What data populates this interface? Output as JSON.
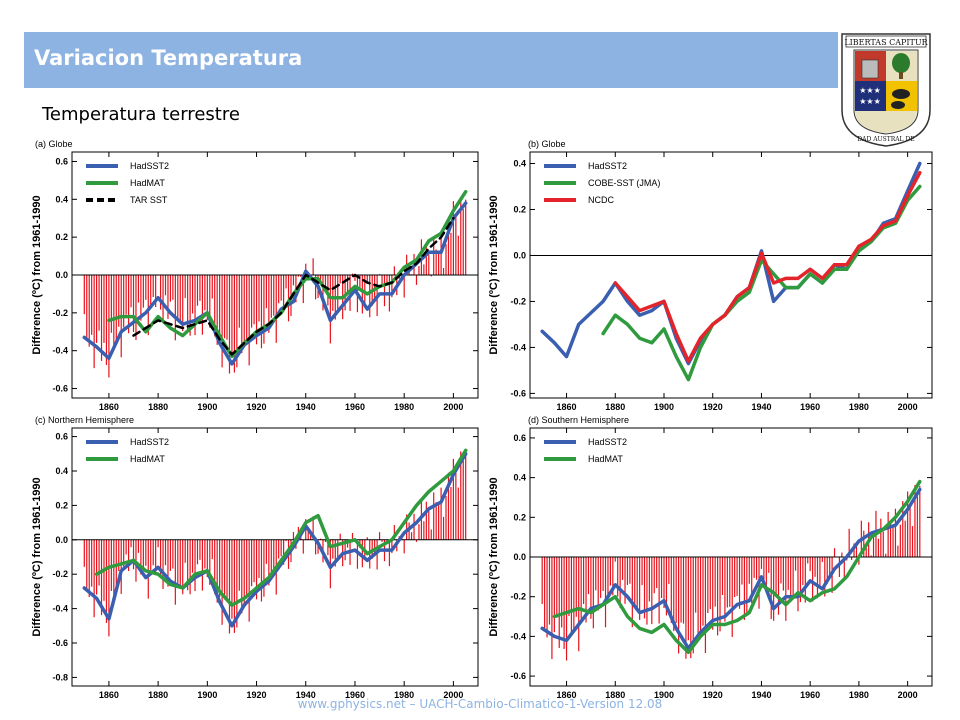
{
  "header": {
    "title": "Variacion Temperatura"
  },
  "subtitle": "Temperatura terrestre",
  "footer": "www.gphysics.net – UACH-Cambio-Climatico-1-Version 12.08",
  "logo": {
    "motto": "LIBERTAS CAPITUR",
    "ring_text": "UNIVERSIDAD AUSTRAL DE CHILE",
    "icon": "university-crest-icon"
  },
  "colors": {
    "accent": "#8db3e2",
    "bars": "#e8121c",
    "hadsst2": "#3a5fb0",
    "hadmat": "#2f9a3e",
    "cobe": "#2f9a3e",
    "ncdc": "#e3242b",
    "tar": "#000000"
  },
  "chart_data": [
    {
      "type": "line",
      "title": "(a) Globe",
      "ylabel": "Difference (ºC) from 1961-1990",
      "xlim": [
        1845,
        2010
      ],
      "ylim": [
        -0.65,
        0.65
      ],
      "xticks": [
        "1860",
        "1880",
        "1900",
        "1920",
        "1940",
        "1960",
        "1980",
        "2000"
      ],
      "yticks": [
        "0.6",
        "0.4",
        "0.2",
        "0.0",
        "-0.2",
        "-0.4",
        "-0.6"
      ],
      "bars_series": "HadSST2 annual anomalies",
      "series": [
        {
          "name": "HadSST2",
          "x": [
            1850,
            1855,
            1860,
            1865,
            1870,
            1875,
            1880,
            1885,
            1890,
            1895,
            1900,
            1905,
            1910,
            1915,
            1920,
            1925,
            1930,
            1935,
            1940,
            1945,
            1950,
            1955,
            1960,
            1965,
            1970,
            1975,
            1980,
            1985,
            1990,
            1995,
            2000,
            2005
          ],
          "values": [
            -0.33,
            -0.38,
            -0.44,
            -0.3,
            -0.25,
            -0.2,
            -0.12,
            -0.2,
            -0.26,
            -0.24,
            -0.2,
            -0.36,
            -0.47,
            -0.37,
            -0.32,
            -0.28,
            -0.18,
            -0.14,
            0.02,
            -0.06,
            -0.24,
            -0.16,
            -0.08,
            -0.18,
            -0.1,
            -0.1,
            0.0,
            0.06,
            0.12,
            0.12,
            0.3,
            0.38
          ]
        },
        {
          "name": "HadMAT",
          "x": [
            1860,
            1865,
            1870,
            1875,
            1880,
            1885,
            1890,
            1895,
            1900,
            1905,
            1910,
            1915,
            1920,
            1925,
            1930,
            1935,
            1940,
            1945,
            1950,
            1955,
            1960,
            1965,
            1970,
            1975,
            1980,
            1985,
            1990,
            1995,
            2000,
            2005
          ],
          "values": [
            -0.24,
            -0.22,
            -0.22,
            -0.3,
            -0.22,
            -0.28,
            -0.32,
            -0.26,
            -0.2,
            -0.32,
            -0.43,
            -0.36,
            -0.3,
            -0.26,
            -0.2,
            -0.1,
            -0.02,
            -0.02,
            -0.12,
            -0.12,
            -0.06,
            -0.1,
            -0.06,
            -0.04,
            0.04,
            0.08,
            0.18,
            0.22,
            0.34,
            0.44
          ]
        },
        {
          "name": "TAR SST",
          "x": [
            1870,
            1875,
            1880,
            1885,
            1890,
            1895,
            1900,
            1905,
            1910,
            1915,
            1920,
            1925,
            1930,
            1935,
            1940,
            1945,
            1950,
            1955,
            1960,
            1965,
            1970,
            1975,
            1980,
            1985,
            1990,
            1995,
            2000
          ],
          "values": [
            -0.32,
            -0.28,
            -0.24,
            -0.26,
            -0.28,
            -0.26,
            -0.24,
            -0.34,
            -0.42,
            -0.36,
            -0.3,
            -0.26,
            -0.2,
            -0.1,
            0.0,
            -0.04,
            -0.08,
            -0.04,
            0.0,
            -0.04,
            -0.06,
            -0.04,
            0.02,
            0.06,
            0.14,
            0.2,
            0.3
          ]
        }
      ]
    },
    {
      "type": "line",
      "title": "(b) Globe",
      "ylabel": "Difference (ºC) from 1961-1990",
      "xlim": [
        1845,
        2010
      ],
      "ylim": [
        -0.62,
        0.45
      ],
      "xticks": [
        "1860",
        "1880",
        "1900",
        "1920",
        "1940",
        "1960",
        "1980",
        "2000"
      ],
      "yticks": [
        "0.4",
        "0.2",
        "0.0",
        "-0.2",
        "-0.4",
        "-0.6"
      ],
      "series": [
        {
          "name": "HadSST2",
          "x": [
            1850,
            1855,
            1860,
            1865,
            1870,
            1875,
            1880,
            1885,
            1890,
            1895,
            1900,
            1905,
            1910,
            1915,
            1920,
            1925,
            1930,
            1935,
            1940,
            1945,
            1950,
            1955,
            1960,
            1965,
            1970,
            1975,
            1980,
            1985,
            1990,
            1995,
            2000,
            2005
          ],
          "values": [
            -0.33,
            -0.38,
            -0.44,
            -0.3,
            -0.25,
            -0.2,
            -0.12,
            -0.2,
            -0.26,
            -0.24,
            -0.2,
            -0.36,
            -0.47,
            -0.37,
            -0.3,
            -0.26,
            -0.18,
            -0.14,
            0.02,
            -0.2,
            -0.14,
            -0.14,
            -0.08,
            -0.12,
            -0.04,
            -0.06,
            0.04,
            0.06,
            0.14,
            0.16,
            0.28,
            0.4
          ]
        },
        {
          "name": "COBE-SST (JMA)",
          "x": [
            1875,
            1880,
            1885,
            1890,
            1895,
            1900,
            1905,
            1910,
            1915,
            1920,
            1925,
            1930,
            1935,
            1940,
            1945,
            1950,
            1955,
            1960,
            1965,
            1970,
            1975,
            1980,
            1985,
            1990,
            1995,
            2000,
            2005
          ],
          "values": [
            -0.34,
            -0.26,
            -0.3,
            -0.36,
            -0.38,
            -0.32,
            -0.44,
            -0.54,
            -0.4,
            -0.3,
            -0.26,
            -0.2,
            -0.16,
            -0.02,
            -0.08,
            -0.14,
            -0.14,
            -0.08,
            -0.12,
            -0.06,
            -0.06,
            0.02,
            0.06,
            0.12,
            0.14,
            0.24,
            0.3
          ]
        },
        {
          "name": "NCDC",
          "x": [
            1880,
            1885,
            1890,
            1895,
            1900,
            1905,
            1910,
            1915,
            1920,
            1925,
            1930,
            1935,
            1940,
            1945,
            1950,
            1955,
            1960,
            1965,
            1970,
            1975,
            1980,
            1985,
            1990,
            1995,
            2000,
            2005
          ],
          "values": [
            -0.12,
            -0.18,
            -0.24,
            -0.22,
            -0.2,
            -0.34,
            -0.46,
            -0.36,
            -0.3,
            -0.26,
            -0.18,
            -0.14,
            0.01,
            -0.12,
            -0.1,
            -0.1,
            -0.06,
            -0.1,
            -0.04,
            -0.04,
            0.04,
            0.07,
            0.13,
            0.15,
            0.26,
            0.36
          ]
        }
      ]
    },
    {
      "type": "line",
      "title": "(c) Northern Hemisphere",
      "ylabel": "Difference (ºC) from 1961-1990",
      "xlim": [
        1845,
        2010
      ],
      "ylim": [
        -0.85,
        0.65
      ],
      "xticks": [
        "1860",
        "1880",
        "1900",
        "1920",
        "1940",
        "1960",
        "1980",
        "2000"
      ],
      "yticks": [
        "0.6",
        "0.4",
        "0.2",
        "0.0",
        "-0.2",
        "-0.4",
        "-0.6",
        "-0.8"
      ],
      "series": [
        {
          "name": "HadSST2",
          "x": [
            1850,
            1855,
            1860,
            1865,
            1870,
            1875,
            1880,
            1885,
            1890,
            1895,
            1900,
            1905,
            1910,
            1915,
            1920,
            1925,
            1930,
            1935,
            1940,
            1945,
            1950,
            1955,
            1960,
            1965,
            1970,
            1975,
            1980,
            1985,
            1990,
            1995,
            2000,
            2005
          ],
          "values": [
            -0.28,
            -0.34,
            -0.46,
            -0.18,
            -0.12,
            -0.22,
            -0.16,
            -0.24,
            -0.28,
            -0.22,
            -0.18,
            -0.36,
            -0.5,
            -0.38,
            -0.3,
            -0.24,
            -0.14,
            -0.04,
            0.08,
            -0.02,
            -0.16,
            -0.08,
            -0.06,
            -0.12,
            -0.06,
            -0.06,
            0.04,
            0.1,
            0.18,
            0.22,
            0.38,
            0.5
          ]
        },
        {
          "name": "HadMAT",
          "x": [
            1855,
            1860,
            1865,
            1870,
            1875,
            1880,
            1885,
            1890,
            1895,
            1900,
            1905,
            1910,
            1915,
            1920,
            1925,
            1930,
            1935,
            1940,
            1945,
            1950,
            1955,
            1960,
            1965,
            1970,
            1975,
            1980,
            1985,
            1990,
            1995,
            2000,
            2005
          ],
          "values": [
            -0.2,
            -0.16,
            -0.14,
            -0.12,
            -0.18,
            -0.2,
            -0.26,
            -0.28,
            -0.2,
            -0.18,
            -0.3,
            -0.38,
            -0.34,
            -0.28,
            -0.22,
            -0.12,
            -0.02,
            0.1,
            0.14,
            -0.04,
            -0.02,
            0.0,
            -0.08,
            -0.04,
            0.0,
            0.1,
            0.2,
            0.28,
            0.34,
            0.4,
            0.52
          ]
        }
      ]
    },
    {
      "type": "line",
      "title": "(d) Southern Hemisphere",
      "ylabel": "Difference (ºC) from 1961-1990",
      "xlim": [
        1845,
        2010
      ],
      "ylim": [
        -0.65,
        0.65
      ],
      "xticks": [
        "1860",
        "1880",
        "1900",
        "1920",
        "1940",
        "1960",
        "1980",
        "2000"
      ],
      "yticks": [
        "0.6",
        "0.4",
        "0.2",
        "0.0",
        "-0.2",
        "-0.4",
        "-0.6"
      ],
      "series": [
        {
          "name": "HadSST2",
          "x": [
            1850,
            1855,
            1860,
            1865,
            1870,
            1875,
            1880,
            1885,
            1890,
            1895,
            1900,
            1905,
            1910,
            1915,
            1920,
            1925,
            1930,
            1935,
            1940,
            1945,
            1950,
            1955,
            1960,
            1965,
            1970,
            1975,
            1980,
            1985,
            1990,
            1995,
            2000,
            2005
          ],
          "values": [
            -0.36,
            -0.4,
            -0.42,
            -0.34,
            -0.26,
            -0.24,
            -0.14,
            -0.2,
            -0.28,
            -0.26,
            -0.22,
            -0.36,
            -0.46,
            -0.38,
            -0.32,
            -0.3,
            -0.24,
            -0.22,
            -0.1,
            -0.26,
            -0.2,
            -0.2,
            -0.12,
            -0.16,
            -0.06,
            0.0,
            0.08,
            0.12,
            0.14,
            0.16,
            0.24,
            0.34
          ]
        },
        {
          "name": "HadMAT",
          "x": [
            1855,
            1860,
            1865,
            1870,
            1875,
            1880,
            1885,
            1890,
            1895,
            1900,
            1905,
            1910,
            1915,
            1920,
            1925,
            1930,
            1935,
            1940,
            1945,
            1950,
            1955,
            1960,
            1965,
            1970,
            1975,
            1980,
            1985,
            1990,
            1995,
            2000,
            2005
          ],
          "values": [
            -0.3,
            -0.28,
            -0.26,
            -0.28,
            -0.24,
            -0.2,
            -0.3,
            -0.36,
            -0.38,
            -0.34,
            -0.42,
            -0.48,
            -0.4,
            -0.34,
            -0.34,
            -0.32,
            -0.28,
            -0.14,
            -0.18,
            -0.24,
            -0.18,
            -0.22,
            -0.18,
            -0.16,
            -0.1,
            0.0,
            0.1,
            0.14,
            0.2,
            0.28,
            0.38
          ]
        }
      ]
    }
  ]
}
